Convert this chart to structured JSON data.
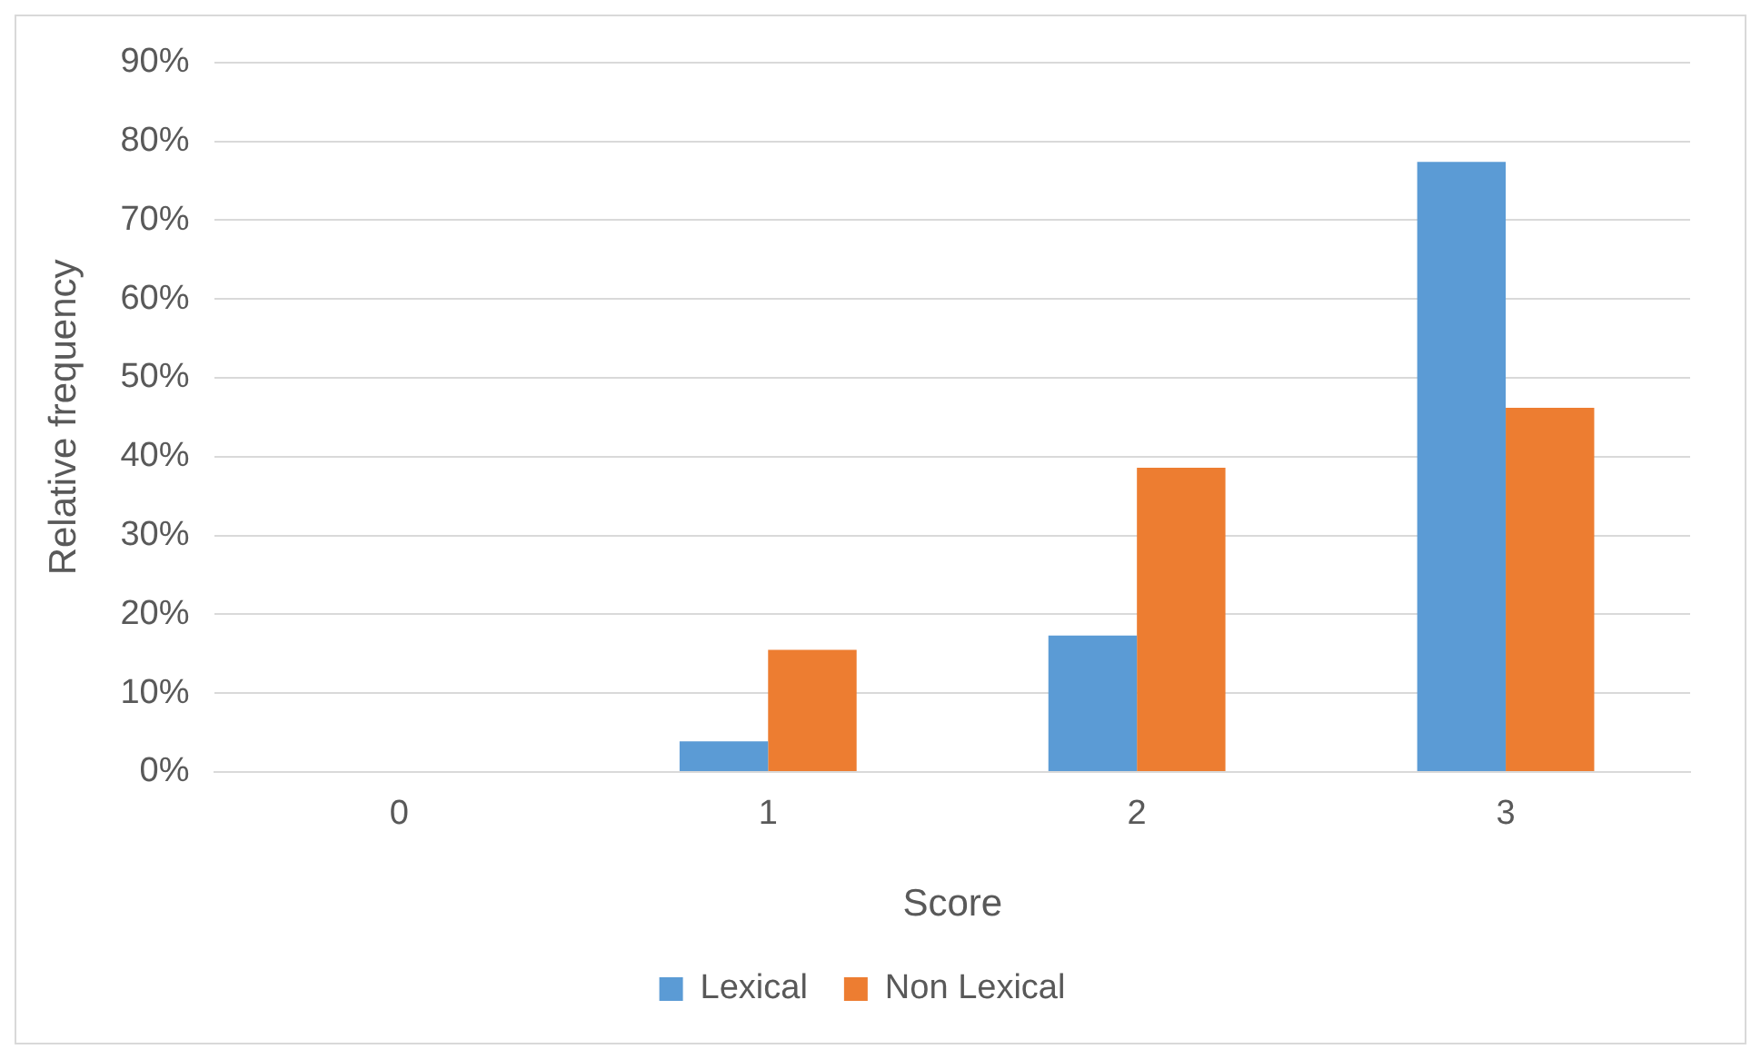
{
  "chart_data": {
    "type": "bar",
    "xlabel": "Score",
    "ylabel": "Relative frequency",
    "categories": [
      "0",
      "1",
      "2",
      "3"
    ],
    "series": [
      {
        "name": "Lexical",
        "color": "#5b9bd5",
        "values": [
          0,
          3.9,
          17.3,
          77.4
        ]
      },
      {
        "name": "Non Lexical",
        "color": "#ed7d31",
        "values": [
          0,
          15.5,
          38.6,
          46.2
        ]
      }
    ],
    "ylim": [
      0,
      90
    ],
    "yticks": [
      {
        "value": 0,
        "label": "0%"
      },
      {
        "value": 10,
        "label": "10%"
      },
      {
        "value": 20,
        "label": "20%"
      },
      {
        "value": 30,
        "label": "30%"
      },
      {
        "value": 40,
        "label": "40%"
      },
      {
        "value": 50,
        "label": "50%"
      },
      {
        "value": 60,
        "label": "60%"
      },
      {
        "value": 70,
        "label": "70%"
      },
      {
        "value": 80,
        "label": "80%"
      },
      {
        "value": 90,
        "label": "90%"
      }
    ],
    "grid": "y",
    "legend": "bottom"
  }
}
